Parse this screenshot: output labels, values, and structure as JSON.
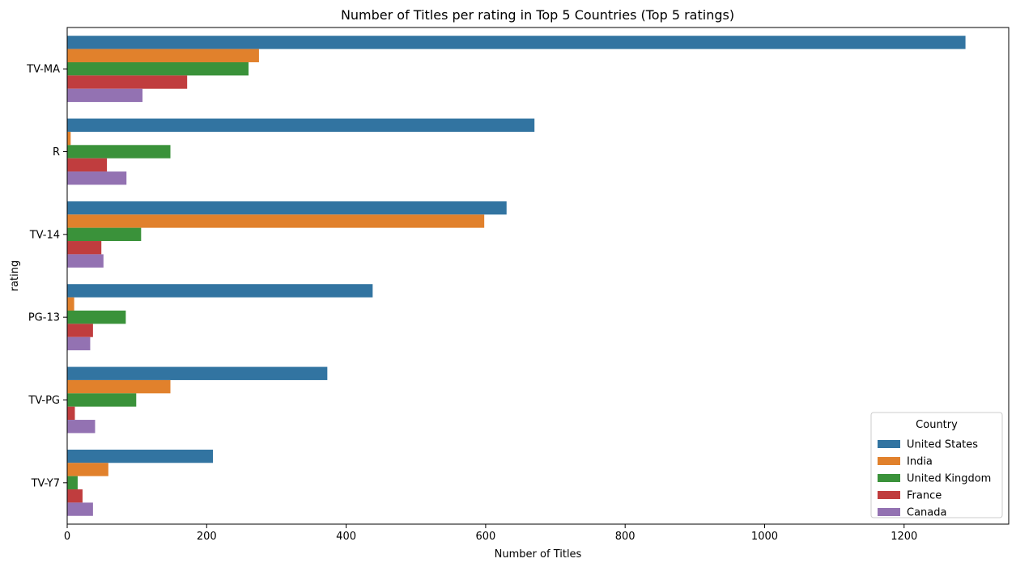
{
  "chart_data": {
    "type": "bar",
    "orientation": "horizontal",
    "title": "Number of Titles per rating in Top 5 Countries (Top 5 ratings)",
    "xlabel": "Number of Titles",
    "ylabel": "rating",
    "categories": [
      "TV-MA",
      "R",
      "TV-14",
      "PG-13",
      "TV-PG",
      "TV-Y7"
    ],
    "xlim": [
      0,
      1350
    ],
    "xticks": [
      0,
      200,
      400,
      600,
      800,
      1000,
      1200
    ],
    "grid": false,
    "legend": {
      "title": "Country",
      "position": "lower-right"
    },
    "series": [
      {
        "name": "United States",
        "color": "#3274a1",
        "values": [
          1288,
          670,
          630,
          438,
          373,
          209
        ]
      },
      {
        "name": "India",
        "color": "#e1812c",
        "values": [
          275,
          5,
          598,
          10,
          148,
          59
        ]
      },
      {
        "name": "United Kingdom",
        "color": "#3a923a",
        "values": [
          260,
          148,
          106,
          84,
          99,
          15
        ]
      },
      {
        "name": "France",
        "color": "#c03d3e",
        "values": [
          172,
          57,
          49,
          37,
          11,
          22
        ]
      },
      {
        "name": "Canada",
        "color": "#9372b2",
        "values": [
          108,
          85,
          52,
          33,
          40,
          37
        ]
      }
    ]
  }
}
